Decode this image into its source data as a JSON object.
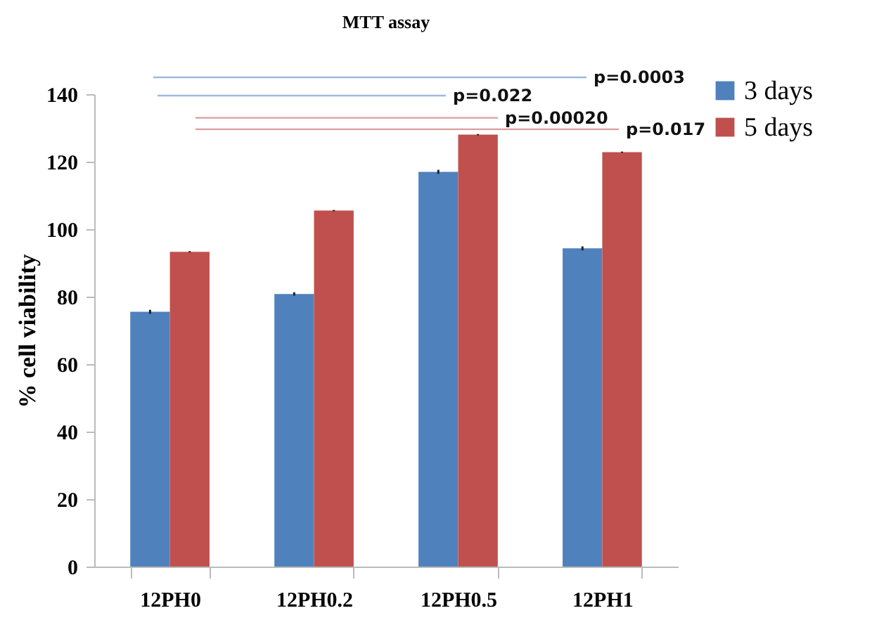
{
  "chart_data": {
    "type": "bar",
    "title": "MTT assay",
    "ylabel": "% cell viability",
    "categories": [
      "12PH0",
      "12PH0.2",
      "12PH0.5",
      "12PH1"
    ],
    "series": [
      {
        "name": "3 days",
        "color": "#4f81bd",
        "values": [
          75.5,
          80.8,
          117,
          94.3
        ],
        "errors": [
          0.6,
          0.5,
          0.6,
          0.6
        ]
      },
      {
        "name": "5 days",
        "color": "#c0504d",
        "values": [
          93.3,
          105.5,
          128,
          122.8
        ],
        "errors": [
          0.2,
          0.2,
          0.2,
          0.2
        ]
      }
    ],
    "ylim": [
      0,
      140
    ],
    "yticks": [
      0,
      20,
      40,
      60,
      80,
      100,
      120,
      140
    ],
    "grid": false,
    "legend": "top right",
    "annotations": [
      "p=0.0003",
      "p=0.022",
      "p=0.00020",
      "p=0.017"
    ],
    "ref_lines": [
      {
        "axis": "y",
        "value": 133,
        "color": "#dc9e9d"
      },
      {
        "axis": "y",
        "value": 129.6,
        "color": "#dc9e9d"
      }
    ]
  }
}
